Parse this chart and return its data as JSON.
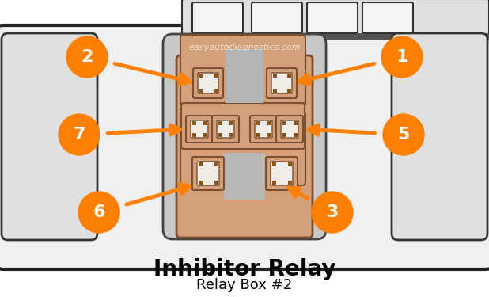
{
  "background_color": "#ffffff",
  "title": "Inhibitor Relay",
  "subtitle": "Relay Box #2",
  "watermark": "easyautodiagnostics.com",
  "orange": "#FF8000",
  "conn_fill": "#D4A07A",
  "conn_border": "#7A5030",
  "conn_dark": "#8B5520",
  "conn_white": "#f0ede8",
  "gray_light": "#e8e8e8",
  "gray_mid": "#cccccc",
  "dark": "#222222"
}
